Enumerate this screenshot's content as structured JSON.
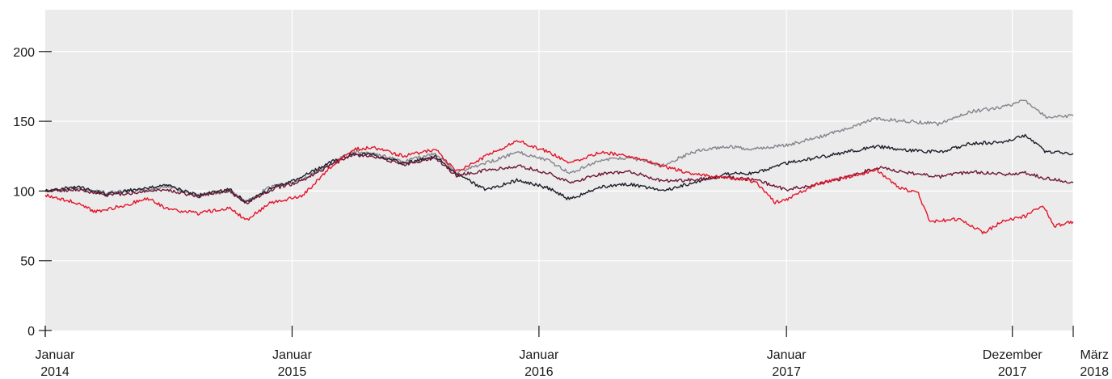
{
  "chart_data": {
    "type": "line",
    "title": "",
    "xlabel": "",
    "ylabel": "",
    "ylim": [
      0,
      230
    ],
    "yticks": [
      0,
      50,
      100,
      150,
      200
    ],
    "xlim": [
      "2014-01-01",
      "2018-03-01"
    ],
    "xticks": [
      {
        "date": "2014-01-01",
        "line1": "Januar",
        "line2": "2014"
      },
      {
        "date": "2015-01-01",
        "line1": "Januar",
        "line2": "2015"
      },
      {
        "date": "2016-01-01",
        "line1": "Januar",
        "line2": "2016"
      },
      {
        "date": "2017-01-01",
        "line1": "Januar",
        "line2": "2017"
      },
      {
        "date": "2017-12-01",
        "line1": "Dezember",
        "line2": "2017"
      },
      {
        "date": "2018-03-01",
        "line1": "März",
        "line2": "2018"
      }
    ],
    "grid": true,
    "colors": {
      "background": "#ebebeb",
      "grid": "#ffffff"
    },
    "series": [
      {
        "color": "#84848d",
        "points": [
          [
            "2014-01-01",
            100
          ],
          [
            "2014-02-15",
            102
          ],
          [
            "2014-04-01",
            99
          ],
          [
            "2014-05-15",
            100
          ],
          [
            "2014-07-01",
            103
          ],
          [
            "2014-08-15",
            97
          ],
          [
            "2014-10-01",
            100
          ],
          [
            "2014-10-25",
            93
          ],
          [
            "2014-12-01",
            103
          ],
          [
            "2015-01-15",
            108
          ],
          [
            "2015-03-01",
            120
          ],
          [
            "2015-04-01",
            128
          ],
          [
            "2015-05-01",
            127
          ],
          [
            "2015-06-15",
            121
          ],
          [
            "2015-08-01",
            127
          ],
          [
            "2015-09-01",
            113
          ],
          [
            "2015-10-15",
            120
          ],
          [
            "2015-12-01",
            128
          ],
          [
            "2016-01-15",
            122
          ],
          [
            "2016-02-15",
            113
          ],
          [
            "2016-04-01",
            122
          ],
          [
            "2016-05-15",
            124
          ],
          [
            "2016-07-01",
            118
          ],
          [
            "2016-08-15",
            128
          ],
          [
            "2016-10-01",
            132
          ],
          [
            "2016-11-15",
            130
          ],
          [
            "2017-01-01",
            133
          ],
          [
            "2017-02-15",
            138
          ],
          [
            "2017-04-01",
            145
          ],
          [
            "2017-05-15",
            152
          ],
          [
            "2017-07-01",
            150
          ],
          [
            "2017-08-15",
            148
          ],
          [
            "2017-10-01",
            157
          ],
          [
            "2017-11-15",
            160
          ],
          [
            "2017-12-20",
            165
          ],
          [
            "2018-01-20",
            153
          ],
          [
            "2018-03-01",
            154
          ]
        ]
      },
      {
        "color": "#1e1e2a",
        "points": [
          [
            "2014-01-01",
            100
          ],
          [
            "2014-02-15",
            103
          ],
          [
            "2014-04-01",
            98
          ],
          [
            "2014-05-15",
            101
          ],
          [
            "2014-07-01",
            104
          ],
          [
            "2014-08-15",
            97
          ],
          [
            "2014-10-01",
            101
          ],
          [
            "2014-10-25",
            92
          ],
          [
            "2014-12-01",
            102
          ],
          [
            "2015-01-15",
            110
          ],
          [
            "2015-03-01",
            121
          ],
          [
            "2015-04-01",
            127
          ],
          [
            "2015-05-01",
            126
          ],
          [
            "2015-06-15",
            120
          ],
          [
            "2015-08-01",
            125
          ],
          [
            "2015-09-01",
            112
          ],
          [
            "2015-10-15",
            101
          ],
          [
            "2015-12-01",
            108
          ],
          [
            "2016-01-15",
            102
          ],
          [
            "2016-02-15",
            94
          ],
          [
            "2016-04-01",
            103
          ],
          [
            "2016-05-15",
            105
          ],
          [
            "2016-07-01",
            100
          ],
          [
            "2016-08-15",
            106
          ],
          [
            "2016-10-01",
            112
          ],
          [
            "2016-11-15",
            113
          ],
          [
            "2017-01-01",
            120
          ],
          [
            "2017-02-15",
            124
          ],
          [
            "2017-04-01",
            128
          ],
          [
            "2017-05-15",
            132
          ],
          [
            "2017-07-01",
            129
          ],
          [
            "2017-08-15",
            128
          ],
          [
            "2017-10-01",
            134
          ],
          [
            "2017-11-15",
            135
          ],
          [
            "2017-12-20",
            140
          ],
          [
            "2018-01-20",
            128
          ],
          [
            "2018-03-01",
            127
          ]
        ]
      },
      {
        "color": "#6e1633",
        "points": [
          [
            "2014-01-01",
            100
          ],
          [
            "2014-02-15",
            101
          ],
          [
            "2014-04-01",
            97
          ],
          [
            "2014-05-15",
            99
          ],
          [
            "2014-07-01",
            101
          ],
          [
            "2014-08-15",
            96
          ],
          [
            "2014-10-01",
            100
          ],
          [
            "2014-10-25",
            91
          ],
          [
            "2014-12-01",
            101
          ],
          [
            "2015-01-15",
            107
          ],
          [
            "2015-03-01",
            119
          ],
          [
            "2015-04-01",
            126
          ],
          [
            "2015-05-01",
            125
          ],
          [
            "2015-06-15",
            119
          ],
          [
            "2015-08-01",
            124
          ],
          [
            "2015-09-01",
            111
          ],
          [
            "2015-10-15",
            115
          ],
          [
            "2015-12-01",
            118
          ],
          [
            "2016-01-15",
            113
          ],
          [
            "2016-02-15",
            106
          ],
          [
            "2016-04-01",
            112
          ],
          [
            "2016-05-15",
            114
          ],
          [
            "2016-07-01",
            107
          ],
          [
            "2016-08-15",
            108
          ],
          [
            "2016-10-01",
            110
          ],
          [
            "2016-11-15",
            108
          ],
          [
            "2017-01-01",
            101
          ],
          [
            "2017-02-15",
            105
          ],
          [
            "2017-04-01",
            110
          ],
          [
            "2017-05-15",
            117
          ],
          [
            "2017-07-01",
            113
          ],
          [
            "2017-08-15",
            110
          ],
          [
            "2017-10-01",
            114
          ],
          [
            "2017-11-15",
            112
          ],
          [
            "2017-12-20",
            113
          ],
          [
            "2018-01-20",
            109
          ],
          [
            "2018-03-01",
            106
          ]
        ]
      },
      {
        "color": "#e5142a",
        "points": [
          [
            "2014-01-01",
            97
          ],
          [
            "2014-02-15",
            92
          ],
          [
            "2014-03-15",
            85
          ],
          [
            "2014-05-01",
            90
          ],
          [
            "2014-06-01",
            95
          ],
          [
            "2014-07-01",
            87
          ],
          [
            "2014-08-15",
            84
          ],
          [
            "2014-10-01",
            88
          ],
          [
            "2014-10-25",
            79
          ],
          [
            "2014-12-01",
            92
          ],
          [
            "2015-01-15",
            96
          ],
          [
            "2015-03-01",
            118
          ],
          [
            "2015-04-01",
            130
          ],
          [
            "2015-05-01",
            131
          ],
          [
            "2015-06-15",
            125
          ],
          [
            "2015-08-01",
            130
          ],
          [
            "2015-09-01",
            114
          ],
          [
            "2015-10-15",
            125
          ],
          [
            "2015-12-01",
            136
          ],
          [
            "2016-01-15",
            128
          ],
          [
            "2016-02-15",
            120
          ],
          [
            "2016-04-01",
            128
          ],
          [
            "2016-05-15",
            125
          ],
          [
            "2016-07-01",
            118
          ],
          [
            "2016-08-15",
            112
          ],
          [
            "2016-10-01",
            110
          ],
          [
            "2016-11-15",
            107
          ],
          [
            "2016-12-15",
            92
          ],
          [
            "2017-01-01",
            94
          ],
          [
            "2017-02-15",
            105
          ],
          [
            "2017-04-01",
            110
          ],
          [
            "2017-05-15",
            115
          ],
          [
            "2017-06-15",
            103
          ],
          [
            "2017-07-15",
            98
          ],
          [
            "2017-08-01",
            78
          ],
          [
            "2017-09-15",
            80
          ],
          [
            "2017-10-20",
            70
          ],
          [
            "2017-11-15",
            78
          ],
          [
            "2017-12-20",
            82
          ],
          [
            "2018-01-15",
            90
          ],
          [
            "2018-02-01",
            75
          ],
          [
            "2018-03-01",
            78
          ]
        ]
      }
    ]
  }
}
